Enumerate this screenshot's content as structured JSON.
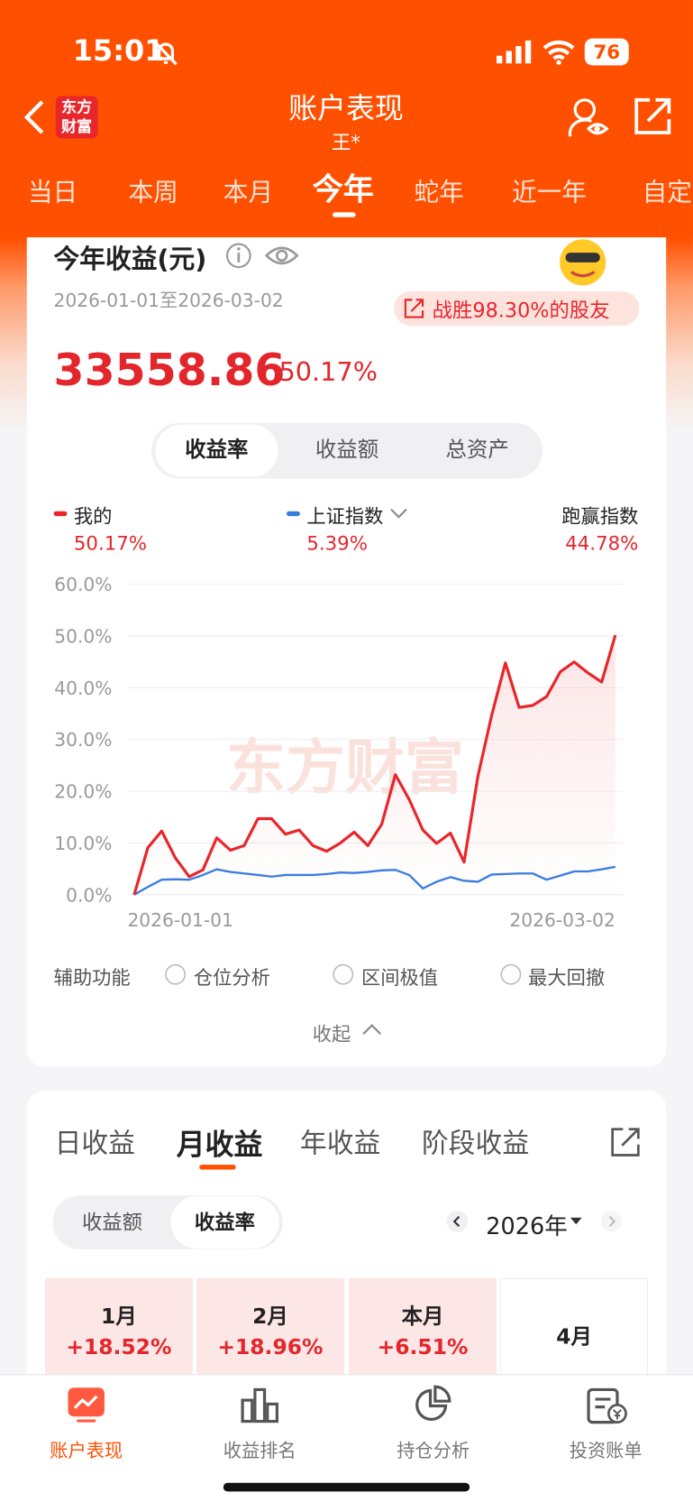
{
  "status": {
    "time": "15:01",
    "battery": "76"
  },
  "header": {
    "logo": "东方财富",
    "title": "账户表现",
    "subtitle": "王*"
  },
  "period_tabs": [
    "当日",
    "本周",
    "本月",
    "今年",
    "蛇年",
    "近一年",
    "自定"
  ],
  "card": {
    "title": "今年收益(元)",
    "date_range": "2026-01-01至2026-03-02",
    "badge": "战胜98.30%的股友",
    "amount": "33558.86",
    "rate": "50.17%",
    "toggle": [
      "收益率",
      "收益额",
      "总资产"
    ],
    "legend_values": [
      "50.17%",
      "5.39%"
    ],
    "extra_legend": {
      "name": "跑赢指数",
      "value": "44.78%"
    },
    "watermark": "东方财富",
    "tools_label": "辅助功能",
    "tools": [
      "仓位分析",
      "区间极值",
      "最大回撤"
    ],
    "collapse": "收起"
  },
  "chart_data": {
    "type": "line",
    "categories": [
      "2026-01-01",
      null,
      null,
      null,
      null,
      null,
      null,
      null,
      null,
      null,
      null,
      null,
      null,
      null,
      null,
      null,
      null,
      null,
      null,
      null,
      null,
      null,
      null,
      null,
      null,
      null,
      null,
      null,
      null,
      null,
      null,
      null,
      null,
      null,
      null,
      "2026-03-02"
    ],
    "series": [
      {
        "name": "我的",
        "color": "#e8262b",
        "values": [
          0,
          9.1,
          12.3,
          7.1,
          3.5,
          4.8,
          11.0,
          8.6,
          9.5,
          14.7,
          14.7,
          11.7,
          12.5,
          9.5,
          8.4,
          10.0,
          12.1,
          9.5,
          13.6,
          23.2,
          18.4,
          12.5,
          9.9,
          11.9,
          6.3,
          22.9,
          34.6,
          44.8,
          36.2,
          36.6,
          38.3,
          43.1,
          45.0,
          42.9,
          41.1,
          50.17
        ]
      },
      {
        "name": "上证指数",
        "color": "#3a7de0",
        "values": [
          0,
          1.5,
          2.9,
          3.0,
          2.9,
          3.8,
          4.9,
          4.4,
          4.1,
          3.8,
          3.5,
          3.8,
          3.8,
          3.8,
          4.0,
          4.3,
          4.2,
          4.4,
          4.7,
          4.8,
          3.8,
          1.2,
          2.5,
          3.4,
          2.7,
          2.5,
          3.9,
          4.0,
          4.1,
          4.1,
          2.9,
          3.7,
          4.5,
          4.5,
          4.9,
          5.39
        ]
      }
    ],
    "ylim": [
      0,
      60
    ],
    "yticks": [
      {
        "value": 0,
        "label": "0.0%"
      },
      {
        "value": 10,
        "label": "10.0%"
      },
      {
        "value": 20,
        "label": "20.0%"
      },
      {
        "value": 30,
        "label": "30.0%"
      },
      {
        "value": 40,
        "label": "40.0%"
      },
      {
        "value": 50,
        "label": "50.0%"
      },
      {
        "value": 60,
        "label": "60.0%"
      }
    ],
    "grid": true
  },
  "section2": {
    "tabs": [
      "日收益",
      "月收益",
      "年收益",
      "阶段收益"
    ],
    "toggle": [
      "收益额",
      "收益率"
    ],
    "year": "2026年",
    "months": [
      {
        "label": "1月",
        "value": "+18.52%"
      },
      {
        "label": "2月",
        "value": "+18.96%"
      },
      {
        "label": "本月",
        "value": "+6.51%"
      },
      {
        "label": "4月"
      }
    ]
  },
  "bottom_nav": [
    "账户表现",
    "收益排名",
    "持仓分析",
    "投资账单"
  ]
}
